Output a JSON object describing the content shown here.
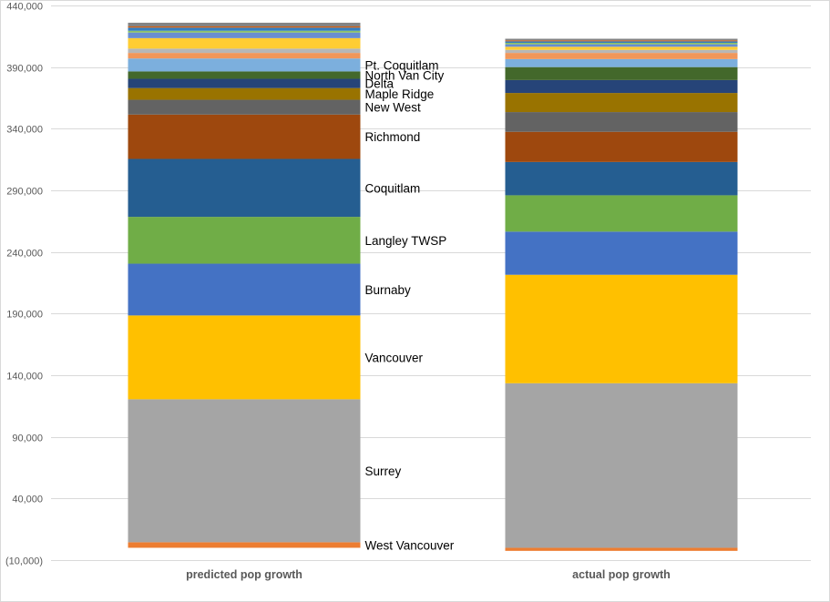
{
  "chart_data": {
    "type": "bar",
    "stacked": true,
    "categories": [
      "predicted pop growth",
      "actual pop growth"
    ],
    "ylim": [
      -10000,
      440000
    ],
    "yticks": [
      -10000,
      40000,
      90000,
      140000,
      190000,
      240000,
      290000,
      340000,
      390000,
      440000
    ],
    "ytick_labels": [
      "(10,000)",
      "40,000",
      "90,000",
      "140,000",
      "190,000",
      "240,000",
      "290,000",
      "340,000",
      "390,000",
      "440,000"
    ],
    "grid": true,
    "series": [
      {
        "name": "West Vancouver",
        "color": "#ed7d31",
        "values": [
          4500,
          -2500
        ]
      },
      {
        "name": "Surrey",
        "color": "#a5a5a5",
        "values": [
          116000,
          133500
        ]
      },
      {
        "name": "Vancouver",
        "color": "#ffc000",
        "values": [
          68000,
          88000
        ]
      },
      {
        "name": "Burnaby",
        "color": "#4472c4",
        "values": [
          42000,
          35000
        ]
      },
      {
        "name": "Langley TWSP",
        "color": "#70ad47",
        "values": [
          38000,
          29500
        ]
      },
      {
        "name": "Coquitlam",
        "color": "#255e91",
        "values": [
          47000,
          27000
        ]
      },
      {
        "name": "Richmond",
        "color": "#9e480e",
        "values": [
          36000,
          24500
        ]
      },
      {
        "name": "New West",
        "color": "#636363",
        "values": [
          12000,
          16000
        ]
      },
      {
        "name": "Maple Ridge",
        "color": "#997300",
        "values": [
          9500,
          15500
        ]
      },
      {
        "name": "Delta",
        "color": "#264478",
        "values": [
          7500,
          10500
        ]
      },
      {
        "name": "North Van City",
        "color": "#43682b",
        "values": [
          6000,
          10500
        ]
      },
      {
        "name": "Pt. Coquitlam",
        "color": "#7cafdd",
        "values": [
          10500,
          6500
        ]
      },
      {
        "name": "",
        "color": "#f1975a",
        "values": [
          4500,
          5000
        ]
      },
      {
        "name": "",
        "color": "#b7b7b7",
        "values": [
          3500,
          2500
        ]
      },
      {
        "name": "",
        "color": "#ffcd33",
        "values": [
          8500,
          2500
        ]
      },
      {
        "name": "",
        "color": "#698ed0",
        "values": [
          4500,
          2000
        ]
      },
      {
        "name": "",
        "color": "#8cc168",
        "values": [
          1500,
          1200
        ]
      },
      {
        "name": "",
        "color": "#327dc2",
        "values": [
          2500,
          1200
        ]
      },
      {
        "name": "",
        "color": "#d26012",
        "values": [
          1000,
          800
        ]
      },
      {
        "name": "",
        "color": "#848484",
        "values": [
          3000,
          1300
        ]
      }
    ]
  }
}
